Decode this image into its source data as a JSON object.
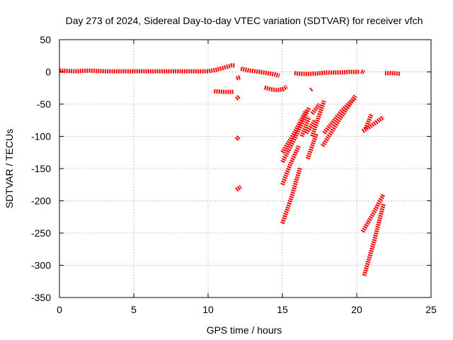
{
  "chart_data": {
    "type": "line",
    "title": "Day 273 of 2024, Sidereal Day-to-day VTEC variation (SDTVAR) for receiver vfch",
    "xlabel": "GPS time / hours",
    "ylabel": "SDTVAR / TECUs",
    "xlim": [
      0,
      25
    ],
    "ylim": [
      -350,
      50
    ],
    "xticks": [
      "0",
      "5",
      "10",
      "15",
      "20",
      "25"
    ],
    "yticks": [
      "50",
      "0",
      "-50",
      "-100",
      "-150",
      "-200",
      "-250",
      "-300",
      "-350"
    ],
    "xtick_values": [
      0,
      5,
      10,
      15,
      20,
      25
    ],
    "ytick_values": [
      50,
      0,
      -50,
      -100,
      -150,
      -200,
      -250,
      -300,
      -350
    ],
    "grid": true,
    "series_color": "#ff0000",
    "series": [
      {
        "x": [
          0,
          1,
          2,
          3,
          4,
          5,
          6,
          7,
          8,
          9,
          10,
          10.5,
          11,
          11.3,
          11.6,
          11.8
        ],
        "y": [
          2,
          1,
          2,
          1,
          1,
          1,
          1,
          1,
          1,
          1,
          1,
          3,
          6,
          8,
          10,
          10
        ]
      },
      {
        "x": [
          12.2,
          12.8,
          13.5,
          14.0,
          14.5,
          14.8
        ],
        "y": [
          5,
          2,
          0,
          -2,
          -4,
          -6
        ]
      },
      {
        "x": [
          15.8,
          16.3,
          17.0,
          17.5,
          18.0,
          18.8,
          19.5,
          20.2
        ],
        "y": [
          -2,
          -3,
          -3,
          -2,
          -1,
          -1,
          0,
          0
        ]
      },
      {
        "x": [
          20.3,
          20.5
        ],
        "y": [
          1,
          -1
        ]
      },
      {
        "x": [
          21.9,
          22.5,
          22.9
        ],
        "y": [
          -2,
          -2,
          -3
        ]
      },
      {
        "x": [
          10.4,
          11.0,
          11.7
        ],
        "y": [
          -30,
          -31,
          -31
        ]
      },
      {
        "x": [
          11.9,
          12.2
        ],
        "y": [
          -10,
          -8
        ]
      },
      {
        "x": [
          11.9,
          12.1
        ],
        "y": [
          -42,
          -38
        ]
      },
      {
        "x": [
          11.9,
          12.1
        ],
        "y": [
          -105,
          -100
        ]
      },
      {
        "x": [
          11.9,
          12.2
        ],
        "y": [
          -183,
          -178
        ]
      },
      {
        "x": [
          13.8,
          14.2,
          14.6,
          15.0,
          15.3
        ],
        "y": [
          -24,
          -27,
          -28,
          -27,
          -23
        ]
      },
      {
        "x": [
          15.0,
          15.8,
          16.6
        ],
        "y": [
          -125,
          -95,
          -60
        ]
      },
      {
        "x": [
          15.0,
          15.9,
          16.8
        ],
        "y": [
          -140,
          -100,
          -55
        ]
      },
      {
        "x": [
          15.0,
          15.5,
          16.1
        ],
        "y": [
          -175,
          -145,
          -115
        ]
      },
      {
        "x": [
          15.0,
          15.6,
          16.2
        ],
        "y": [
          -235,
          -195,
          -148
        ]
      },
      {
        "x": [
          16.3,
          16.8
        ],
        "y": [
          -100,
          -70
        ]
      },
      {
        "x": [
          16.6,
          17.2
        ],
        "y": [
          -95,
          -75
        ]
      },
      {
        "x": [
          16.7,
          17.3
        ],
        "y": [
          -135,
          -95
        ]
      },
      {
        "x": [
          17.0,
          17.5
        ],
        "y": [
          -65,
          -50
        ]
      },
      {
        "x": [
          17.0,
          17.8
        ],
        "y": [
          -100,
          -45
        ]
      },
      {
        "x": [
          16.9,
          17.0
        ],
        "y": [
          -28,
          -26
        ]
      },
      {
        "x": [
          17.7,
          18.8,
          19.9
        ],
        "y": [
          -115,
          -75,
          -37
        ]
      },
      {
        "x": [
          17.8,
          19.0,
          19.9
        ],
        "y": [
          -95,
          -60,
          -40
        ]
      },
      {
        "x": [
          20.4,
          21.2,
          21.8
        ],
        "y": [
          -92,
          -80,
          -70
        ]
      },
      {
        "x": [
          20.6,
          21.0
        ],
        "y": [
          -88,
          -65
        ]
      },
      {
        "x": [
          20.4,
          21.1,
          21.8
        ],
        "y": [
          -248,
          -220,
          -190
        ]
      },
      {
        "x": [
          20.5,
          21.2,
          21.8
        ],
        "y": [
          -316,
          -260,
          -205
        ]
      }
    ]
  }
}
